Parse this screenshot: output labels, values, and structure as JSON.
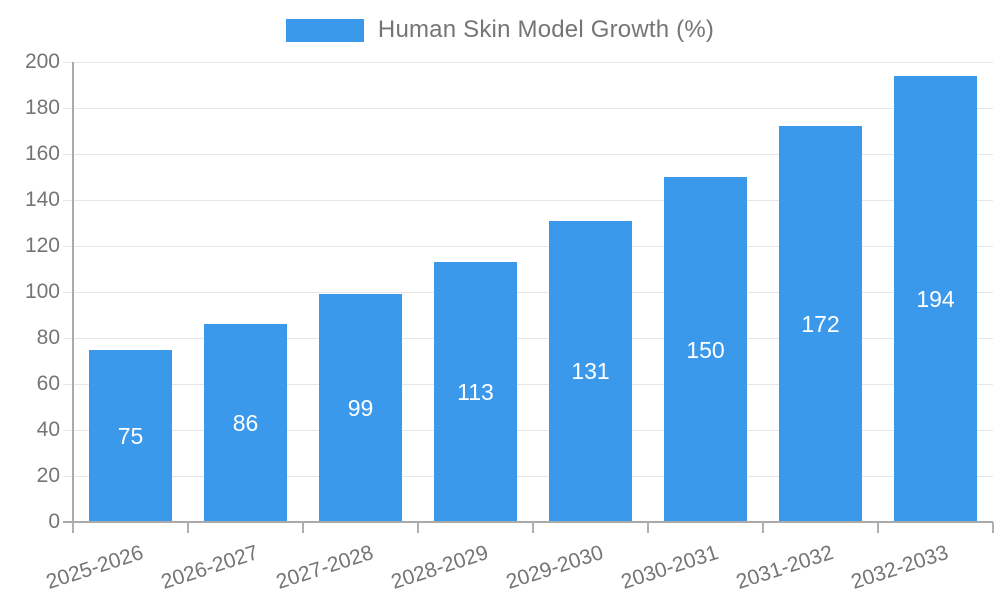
{
  "legend": {
    "label": "Human Skin Model Growth (%)"
  },
  "chart_data": {
    "type": "bar",
    "title": "Human Skin Model Growth (%)",
    "categories": [
      "2025-2026",
      "2026-2027",
      "2027-2028",
      "2028-2029",
      "2029-2030",
      "2030-2031",
      "2031-2032",
      "2032-2033"
    ],
    "values": [
      75,
      86,
      99,
      113,
      131,
      150,
      172,
      194
    ],
    "xlabel": "",
    "ylabel": "",
    "ylim": [
      0,
      200
    ],
    "ytick_step": 20,
    "grid": "on",
    "legend_position": "top",
    "colors": {
      "bar": "#3b99ec",
      "gridline": "#e6e6e6",
      "axis": "#aaaaaa",
      "text": "#757575",
      "bar_label_text": "#ffffff"
    }
  }
}
